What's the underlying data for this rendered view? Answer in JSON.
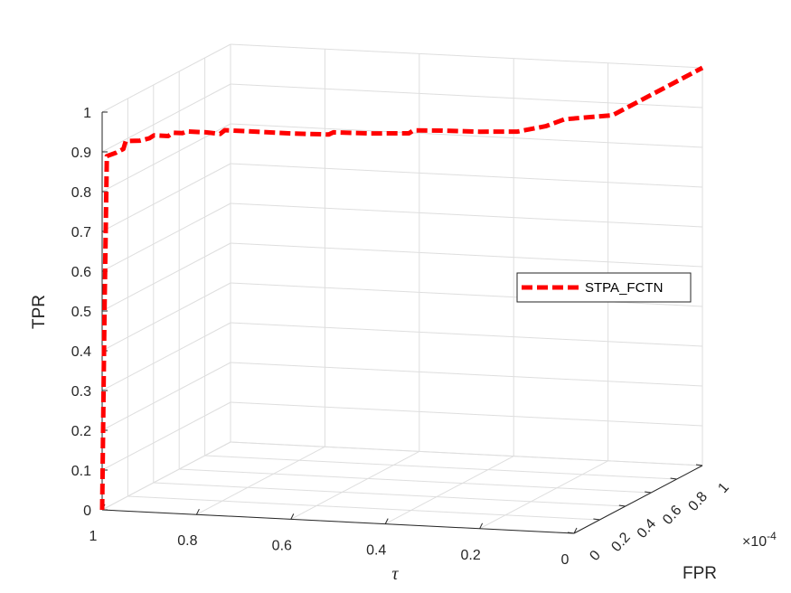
{
  "chart_data": {
    "type": "line",
    "view": "3d",
    "xlabel": "τ",
    "ylabel": "FPR",
    "zlabel": "TPR",
    "y_exponent": "×10",
    "y_exponent_power": "-4",
    "xlim": [
      0,
      1
    ],
    "ylim": [
      0,
      1
    ],
    "zlim": [
      0,
      1
    ],
    "x_ticks": [
      "1",
      "0.8",
      "0.6",
      "0.4",
      "0.2",
      "0"
    ],
    "y_ticks": [
      "0",
      "0.2",
      "0.4",
      "0.6",
      "0.8",
      "1"
    ],
    "z_ticks": [
      "0",
      "0.1",
      "0.2",
      "0.3",
      "0.4",
      "0.5",
      "0.6",
      "0.7",
      "0.8",
      "0.9",
      "1"
    ],
    "grid": true,
    "legend_position": "right",
    "series": [
      {
        "name": "STPA_FCTN",
        "color": "#ff0000",
        "line_style": "dashed",
        "points": [
          {
            "tau": 1.0,
            "fpr": 0.0,
            "tpr": 0.0
          },
          {
            "tau": 0.995,
            "fpr": 0.0,
            "tpr": 0.5
          },
          {
            "tau": 0.99,
            "fpr": 0.0,
            "tpr": 0.89
          },
          {
            "tau": 0.97,
            "fpr": 0.0,
            "tpr": 0.9
          },
          {
            "tau": 0.955,
            "fpr": 0.0,
            "tpr": 0.91
          },
          {
            "tau": 0.95,
            "fpr": 0.0,
            "tpr": 0.93
          },
          {
            "tau": 0.93,
            "fpr": 0.0,
            "tpr": 0.932
          },
          {
            "tau": 0.92,
            "fpr": 0.0,
            "tpr": 0.933
          },
          {
            "tau": 0.9,
            "fpr": 0.0,
            "tpr": 0.94
          },
          {
            "tau": 0.89,
            "fpr": 0.0,
            "tpr": 0.948
          },
          {
            "tau": 0.86,
            "fpr": 0.0,
            "tpr": 0.948
          },
          {
            "tau": 0.85,
            "fpr": 0.0,
            "tpr": 0.957
          },
          {
            "tau": 0.83,
            "fpr": 0.0,
            "tpr": 0.957
          },
          {
            "tau": 0.82,
            "fpr": 0.0,
            "tpr": 0.962
          },
          {
            "tau": 0.78,
            "fpr": 0.0,
            "tpr": 0.962
          },
          {
            "tau": 0.75,
            "fpr": 0.0,
            "tpr": 0.96
          },
          {
            "tau": 0.74,
            "fpr": 0.0,
            "tpr": 0.97
          },
          {
            "tau": 0.7,
            "fpr": 0.0,
            "tpr": 0.97
          },
          {
            "tau": 0.6,
            "fpr": 0.0,
            "tpr": 0.97
          },
          {
            "tau": 0.52,
            "fpr": 0.0,
            "tpr": 0.972
          },
          {
            "tau": 0.51,
            "fpr": 0.0,
            "tpr": 0.978
          },
          {
            "tau": 0.43,
            "fpr": 0.0,
            "tpr": 0.98
          },
          {
            "tau": 0.35,
            "fpr": 0.0,
            "tpr": 0.985
          },
          {
            "tau": 0.34,
            "fpr": 0.0,
            "tpr": 0.993
          },
          {
            "tau": 0.28,
            "fpr": 0.0,
            "tpr": 0.996
          },
          {
            "tau": 0.2,
            "fpr": 0.0,
            "tpr": 0.998
          },
          {
            "tau": 0.12,
            "fpr": 0.0,
            "tpr": 1.003
          },
          {
            "tau": 0.06,
            "fpr": 0.0,
            "tpr": 1.02
          },
          {
            "tau": 0.02,
            "fpr": 0.0,
            "tpr": 1.04
          },
          {
            "tau": 0.0,
            "fpr": 0.3,
            "tpr": 1.0
          },
          {
            "tau": 0.0,
            "fpr": 0.5,
            "tpr": 1.0
          },
          {
            "tau": 0.0,
            "fpr": 0.75,
            "tpr": 1.0
          },
          {
            "tau": 0.0,
            "fpr": 1.0,
            "tpr": 1.0
          }
        ]
      }
    ]
  }
}
